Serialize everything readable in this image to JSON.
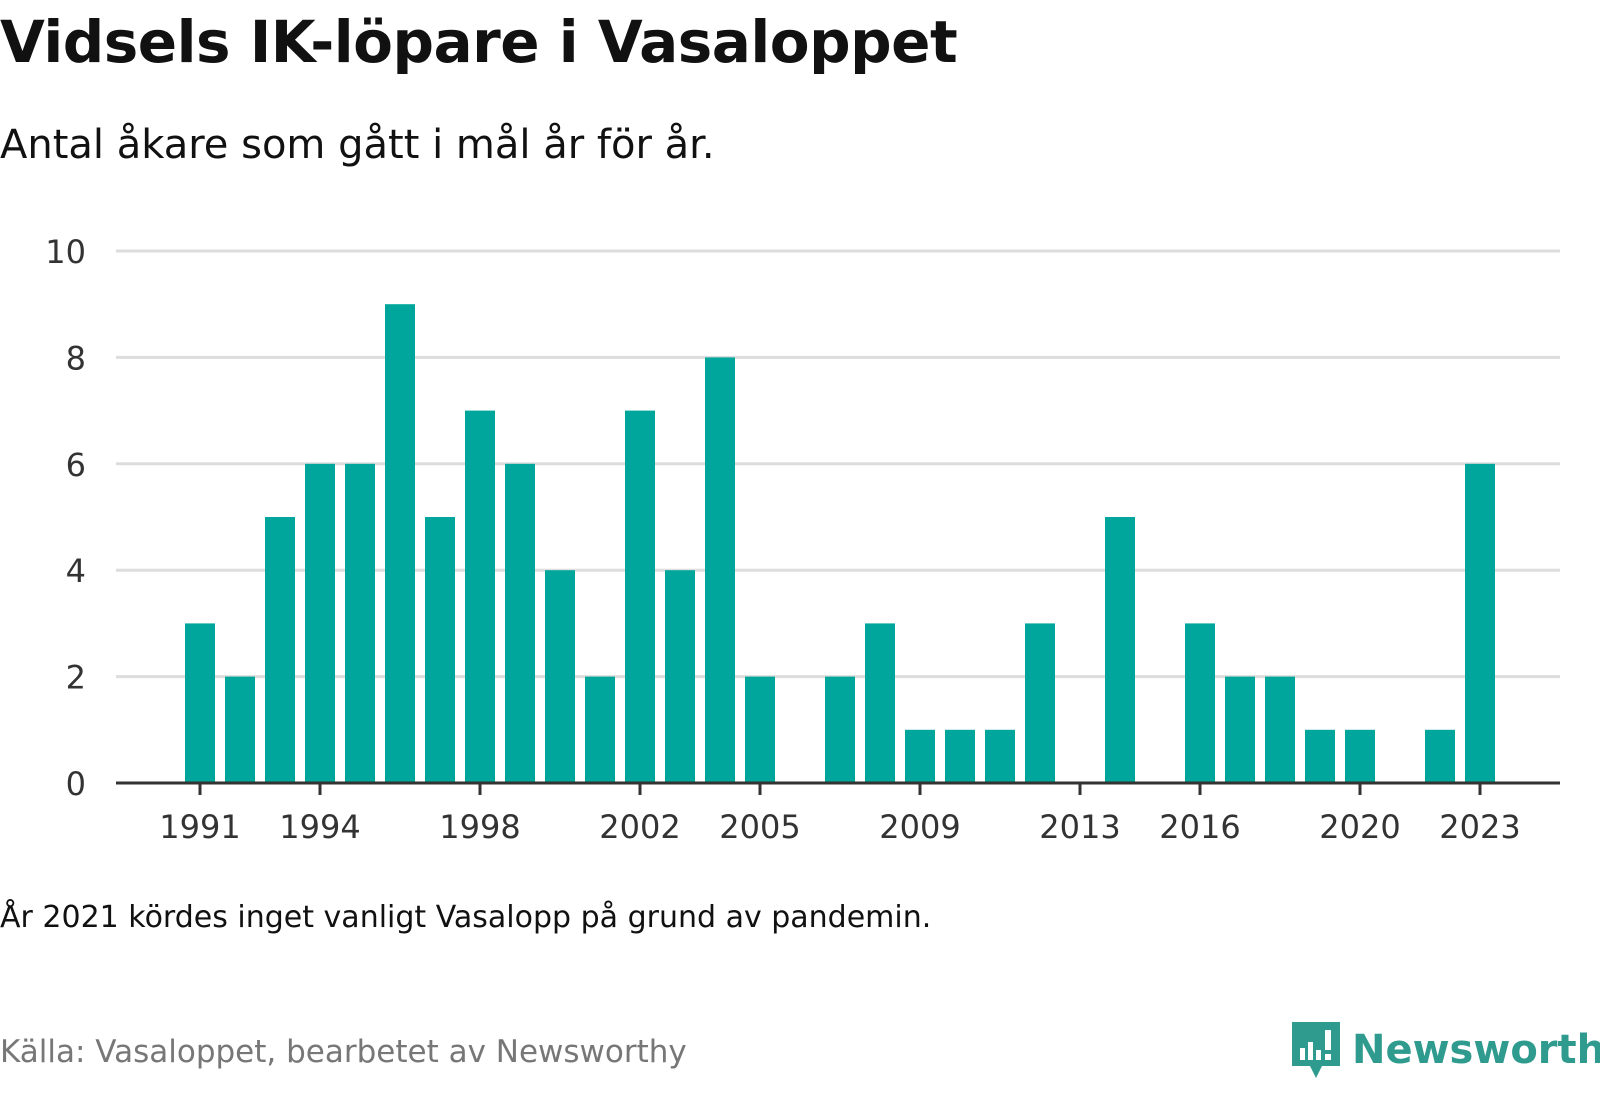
{
  "title": "Vidsels IK-löpare i Vasaloppet",
  "subtitle": "Antal åkare som gått i mål år för år.",
  "note": "År 2021 kördes inget vanligt Vasalopp på grund av pandemin.",
  "source": "Källa: Vasaloppet, bearbetet av Newsworthy",
  "logo": {
    "text": "Newsworthy",
    "icon": "newsworthy-chart-icon"
  },
  "colors": {
    "bar": "#00a59b",
    "grid": "#dddddd",
    "axis": "#333333",
    "brand": "#2f9a8e"
  },
  "chart_data": {
    "type": "bar",
    "x": [
      1991,
      1992,
      1993,
      1994,
      1995,
      1996,
      1997,
      1998,
      1999,
      2000,
      2001,
      2002,
      2003,
      2004,
      2005,
      2006,
      2007,
      2008,
      2009,
      2010,
      2011,
      2012,
      2013,
      2014,
      2015,
      2016,
      2017,
      2018,
      2019,
      2020,
      2021,
      2022,
      2023
    ],
    "values": [
      3,
      2,
      5,
      6,
      6,
      9,
      5,
      7,
      6,
      4,
      2,
      7,
      4,
      8,
      2,
      0,
      2,
      3,
      1,
      1,
      1,
      3,
      0,
      5,
      0,
      3,
      2,
      2,
      1,
      1,
      0,
      1,
      6
    ],
    "x_tick_labels": [
      "1991",
      "1994",
      "1998",
      "2002",
      "2005",
      "2009",
      "2013",
      "2016",
      "2020",
      "2023"
    ],
    "y_ticks": [
      0,
      2,
      4,
      6,
      8,
      10
    ],
    "ylim": [
      0,
      10
    ],
    "xlabel": "",
    "ylabel": "",
    "grid": true,
    "legend": "none"
  }
}
